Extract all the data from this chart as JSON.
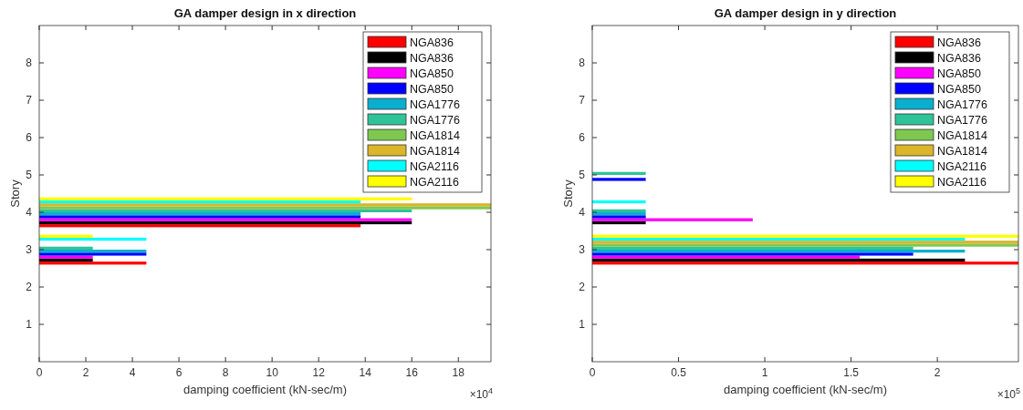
{
  "chart_data": [
    {
      "type": "bar",
      "orientation": "horizontal",
      "title": "GA damper design in x direction",
      "xlabel": "damping coefficient (kN-sec/m)",
      "ylabel": "Story",
      "categories": [
        "8",
        "7",
        "6",
        "5",
        "4",
        "3",
        "2",
        "1"
      ],
      "xlim": [
        0,
        19.4
      ],
      "xticks": [
        0,
        2,
        4,
        6,
        8,
        10,
        12,
        14,
        16,
        18
      ],
      "legend": "top right",
      "grid": false,
      "annotations": [
        "×10$^{4}$"
      ],
      "series": [
        {
          "name": "NGA836",
          "color": "#ff0000",
          "values": [
            0,
            0,
            0,
            0,
            13.8,
            4.6,
            0,
            0
          ]
        },
        {
          "name": "NGA836",
          "color": "#000000",
          "values": [
            0,
            0,
            0,
            0,
            16,
            2.3,
            0,
            0
          ]
        },
        {
          "name": "NGA850",
          "color": "#ff00ff",
          "values": [
            0,
            0,
            0,
            0,
            16,
            2.3,
            0,
            0
          ]
        },
        {
          "name": "NGA850",
          "color": "#0000ff",
          "values": [
            0,
            0,
            0,
            0,
            13.8,
            4.6,
            0,
            0
          ]
        },
        {
          "name": "NGA1776",
          "color": "#0aafcf",
          "values": [
            0,
            0,
            0,
            0,
            13.8,
            4.6,
            0,
            0
          ]
        },
        {
          "name": "NGA1776",
          "color": "#2fc39a",
          "values": [
            0,
            0,
            0,
            0,
            16,
            2.3,
            0,
            0
          ]
        },
        {
          "name": "NGA1814",
          "color": "#7ec850",
          "values": [
            0,
            0,
            0,
            0,
            19.4,
            0,
            0,
            0
          ]
        },
        {
          "name": "NGA1814",
          "color": "#dbb52a",
          "values": [
            0,
            0,
            0,
            0,
            19.4,
            0,
            0,
            0
          ]
        },
        {
          "name": "NGA2116",
          "color": "#00ffff",
          "values": [
            0,
            0,
            0,
            0,
            13.8,
            4.6,
            0,
            0
          ]
        },
        {
          "name": "NGA2116",
          "color": "#ffff00",
          "values": [
            0,
            0,
            0,
            0,
            16,
            2.3,
            0,
            0
          ]
        }
      ]
    },
    {
      "type": "bar",
      "orientation": "horizontal",
      "title": "GA damper design in y direction",
      "xlabel": "damping coefficient (kN-sec/m)",
      "ylabel": "Story",
      "categories": [
        "8",
        "7",
        "6",
        "5",
        "4",
        "3",
        "2",
        "1"
      ],
      "xlim": [
        0,
        2.47
      ],
      "xticks": [
        0,
        0.5,
        1,
        1.5,
        2
      ],
      "legend": "top right",
      "grid": false,
      "annotations": [
        "×10$^{5}$"
      ],
      "series": [
        {
          "name": "NGA836",
          "color": "#ff0000",
          "values": [
            0,
            0,
            0,
            0,
            0,
            2.47,
            0,
            0
          ]
        },
        {
          "name": "NGA836",
          "color": "#000000",
          "values": [
            0,
            0,
            0,
            0,
            0.31,
            2.16,
            0,
            0
          ]
        },
        {
          "name": "NGA850",
          "color": "#ff00ff",
          "values": [
            0,
            0,
            0,
            0,
            0.93,
            1.55,
            0,
            0
          ]
        },
        {
          "name": "NGA850",
          "color": "#0000ff",
          "values": [
            0,
            0,
            0,
            0.31,
            0.31,
            1.86,
            0,
            0
          ]
        },
        {
          "name": "NGA1776",
          "color": "#0aafcf",
          "values": [
            0,
            0,
            0,
            0,
            0.31,
            2.16,
            0,
            0
          ]
        },
        {
          "name": "NGA1776",
          "color": "#2fc39a",
          "values": [
            0,
            0,
            0,
            0.31,
            0.31,
            1.86,
            0,
            0
          ]
        },
        {
          "name": "NGA1814",
          "color": "#7ec850",
          "values": [
            0,
            0,
            0,
            0,
            0,
            2.47,
            0,
            0
          ]
        },
        {
          "name": "NGA1814",
          "color": "#dbb52a",
          "values": [
            0,
            0,
            0,
            0,
            0,
            2.47,
            0,
            0
          ]
        },
        {
          "name": "NGA2116",
          "color": "#00ffff",
          "values": [
            0,
            0,
            0,
            0,
            0.31,
            2.16,
            0,
            0
          ]
        },
        {
          "name": "NGA2116",
          "color": "#ffff00",
          "values": [
            0,
            0,
            0,
            0,
            0,
            2.47,
            0,
            0
          ]
        }
      ]
    }
  ]
}
